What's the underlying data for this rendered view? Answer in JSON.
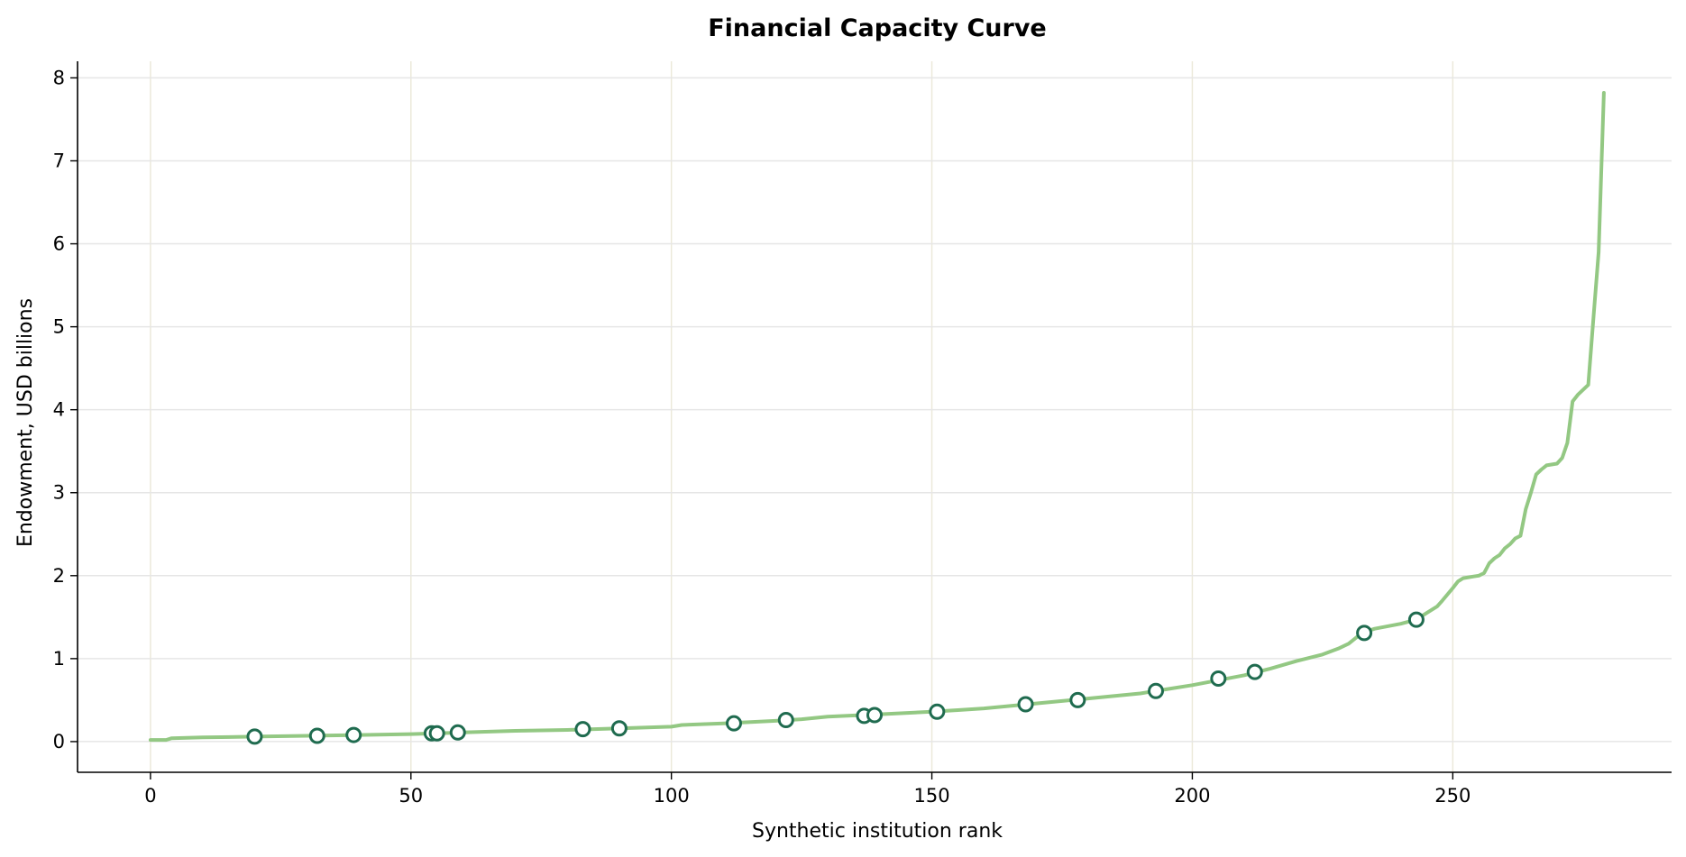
{
  "chart_data": {
    "type": "line",
    "title": "Financial Capacity Curve",
    "xlabel": "Synthetic institution rank",
    "ylabel": "Endowment, USD billions",
    "xlim": [
      -14,
      292
    ],
    "ylim": [
      -0.37,
      8.2
    ],
    "xticks": [
      0,
      50,
      100,
      150,
      200,
      250
    ],
    "yticks": [
      0,
      1,
      2,
      3,
      4,
      5,
      6,
      7,
      8
    ],
    "grid": true,
    "colors": {
      "line": "#93c883",
      "marker_edge": "#1f6b4f",
      "marker_fill": "#ffffff",
      "grid_h": "#e6e6e6",
      "grid_v": "#ece9da",
      "axis": "#000000"
    },
    "series": [
      {
        "style": "line",
        "x": [
          0,
          3,
          4,
          10,
          20,
          30,
          40,
          50,
          60,
          70,
          80,
          90,
          100,
          102,
          110,
          120,
          125,
          130,
          140,
          150,
          155,
          160,
          170,
          180,
          190,
          195,
          200,
          205,
          210,
          215,
          220,
          225,
          228,
          230,
          232,
          233,
          235,
          240,
          243,
          245,
          247,
          248,
          250,
          251,
          252,
          254,
          255,
          256,
          257,
          258,
          259,
          260,
          261,
          262,
          263,
          264,
          265,
          266,
          267,
          268,
          270,
          271,
          272,
          273,
          274,
          276,
          277,
          278,
          279
        ],
        "y": [
          0.02,
          0.02,
          0.04,
          0.05,
          0.06,
          0.07,
          0.08,
          0.09,
          0.11,
          0.13,
          0.14,
          0.16,
          0.18,
          0.2,
          0.22,
          0.25,
          0.27,
          0.3,
          0.33,
          0.36,
          0.38,
          0.4,
          0.46,
          0.52,
          0.58,
          0.63,
          0.68,
          0.74,
          0.8,
          0.88,
          0.97,
          1.05,
          1.12,
          1.18,
          1.28,
          1.32,
          1.36,
          1.42,
          1.47,
          1.55,
          1.63,
          1.7,
          1.85,
          1.93,
          1.97,
          1.99,
          2.0,
          2.03,
          2.15,
          2.21,
          2.25,
          2.33,
          2.38,
          2.45,
          2.48,
          2.8,
          3.0,
          3.22,
          3.28,
          3.33,
          3.35,
          3.42,
          3.6,
          4.1,
          4.18,
          4.3,
          5.1,
          5.9,
          7.82
        ]
      },
      {
        "style": "markers",
        "x": [
          20,
          32,
          39,
          54,
          55,
          59,
          83,
          90,
          112,
          122,
          137,
          139,
          151,
          168,
          178,
          193,
          205,
          212,
          233,
          243
        ],
        "y": [
          0.06,
          0.07,
          0.08,
          0.1,
          0.1,
          0.11,
          0.15,
          0.16,
          0.22,
          0.26,
          0.31,
          0.32,
          0.36,
          0.45,
          0.5,
          0.61,
          0.76,
          0.84,
          1.31,
          1.47
        ]
      }
    ]
  }
}
